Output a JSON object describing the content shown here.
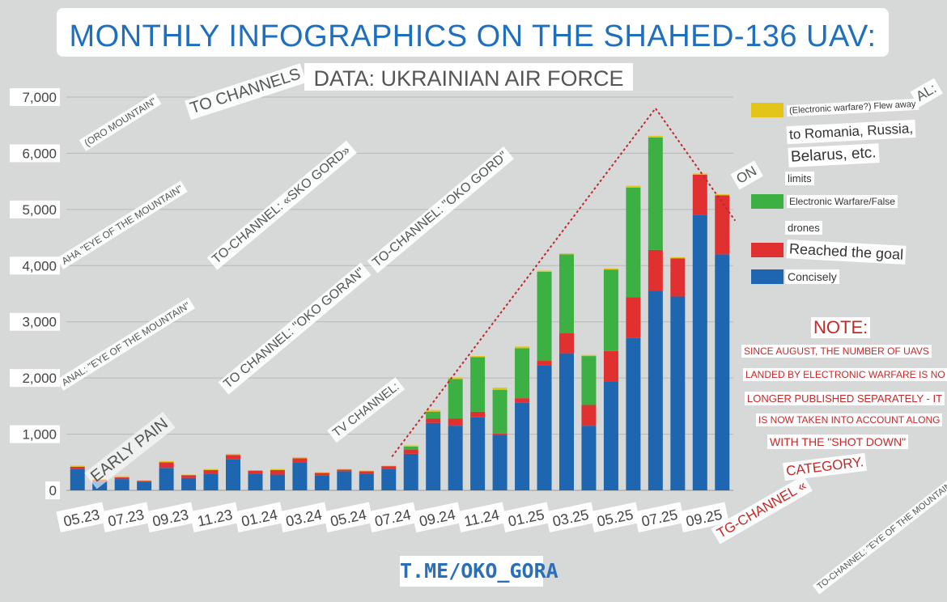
{
  "header": {
    "title": "MONTHLY INFOGRAPHICS ON THE SHAHED-136 UAV:",
    "subtitle": "DATA: UKRAINIAN AIR FORCE"
  },
  "chart_data": {
    "type": "bar",
    "stacked": true,
    "months": [
      "05.23",
      "06.23",
      "07.23",
      "08.23",
      "09.23",
      "10.23",
      "11.23",
      "12.23",
      "01.24",
      "02.24",
      "03.24",
      "04.24",
      "05.24",
      "06.24",
      "07.24",
      "08.24",
      "09.24",
      "10.24",
      "11.24",
      "12.24",
      "01.25",
      "02.25",
      "03.25",
      "04.25",
      "05.25",
      "06.25",
      "07.25",
      "08.25",
      "09.25",
      "10.25"
    ],
    "x_tick_labels": [
      "05.23",
      "07.23",
      "09.23",
      "11.23",
      "01.24",
      "03.24",
      "05.24",
      "07.24",
      "09.24",
      "11.24",
      "01.25",
      "03.25",
      "05.25",
      "07.25",
      "09.25"
    ],
    "series": [
      {
        "name": "Concisely",
        "color": "#1f66b0",
        "values": [
          380,
          150,
          200,
          150,
          400,
          220,
          300,
          550,
          300,
          280,
          500,
          270,
          340,
          300,
          380,
          650,
          1200,
          1150,
          1300,
          980,
          1560,
          2230,
          2440,
          1150,
          1930,
          2710,
          3550,
          3450,
          4900,
          4200
        ]
      },
      {
        "name": "Reached the goal",
        "color": "#e03030",
        "values": [
          40,
          40,
          30,
          20,
          100,
          50,
          60,
          80,
          50,
          80,
          70,
          40,
          30,
          40,
          50,
          70,
          80,
          130,
          100,
          30,
          80,
          80,
          360,
          370,
          550,
          730,
          730,
          680,
          720,
          1050
        ]
      },
      {
        "name": "Electronic Warfare/False limits drones",
        "color": "#3cb043",
        "values": [
          0,
          0,
          0,
          0,
          0,
          0,
          0,
          0,
          0,
          0,
          0,
          0,
          0,
          0,
          0,
          60,
          120,
          700,
          970,
          780,
          890,
          1580,
          1400,
          870,
          1450,
          1950,
          2000,
          0,
          0,
          0
        ]
      },
      {
        "name": "(Electronic warfare?) Flew away to Romania, Russia, Belarus, etc.",
        "color": "#e3c419",
        "values": [
          20,
          10,
          20,
          10,
          20,
          10,
          20,
          20,
          10,
          20,
          20,
          10,
          10,
          10,
          10,
          20,
          30,
          30,
          20,
          40,
          30,
          20,
          20,
          20,
          20,
          30,
          30,
          20,
          20,
          20
        ]
      }
    ],
    "ylim": [
      0,
      7000
    ],
    "y_ticks": [
      0,
      1000,
      2000,
      3000,
      4000,
      5000,
      6000,
      7000
    ],
    "y_tick_labels": [
      "0",
      "1,000",
      "2,000",
      "3,000",
      "4,000",
      "5,000",
      "6,000",
      "7,000"
    ],
    "trend_line": {
      "from_month": "07.24",
      "peak_month": "07.25",
      "peak_value": 6800,
      "to_month": "10.25",
      "to_value": 5600
    }
  },
  "legend": {
    "items": [
      {
        "color": "#e3c419",
        "lines": [
          "(Electronic warfare?) Flew away",
          "to Romania, Russia,",
          "Belarus, etc.",
          "limits"
        ]
      },
      {
        "color": "#3cb043",
        "lines": [
          "Electronic Warfare/False",
          "drones"
        ]
      },
      {
        "color": "#e03030",
        "lines": [
          "Reached the goal"
        ]
      },
      {
        "color": "#1f66b0",
        "lines": [
          "Concisely"
        ]
      }
    ]
  },
  "note": {
    "title": "NOTE:",
    "lines": [
      "SINCE AUGUST, THE NUMBER OF UAVS",
      "LANDED BY ELECTRONIC WARFARE IS NO",
      "LONGER PUBLISHED SEPARATELY - IT",
      "IS NOW TAKEN INTO ACCOUNT ALONG",
      "WITH THE \"SHOT DOWN\"",
      "CATEGORY."
    ]
  },
  "watermarks": {
    "to_channels": "TO CHANNELS",
    "oro_mountain": "(ORO MOUNTAIN\"",
    "sko_gord": "TO-CHANNEL: «SKO GORD»",
    "oko_gord": "TO-CHANNEL: \"OKO GORD\"",
    "eye_mountain_1": "AHA \"EYE OF THE MOUNTAIN\"",
    "eye_mountain_2": "ANAL: \"EYE OF THE MOUNTAIN\"",
    "oko_goran": "TO CHANNEL: \"OKO GORAN\"",
    "tv_channel": "TV CHANNEL:",
    "early_pain": "EARLY PAIN",
    "tg_channel": "TG-CHANNEL «",
    "eye_mountains": "TO-CHANNEL: \"EYE OF THE MOUNTAINS\"",
    "al": "AL:",
    "on": "ON"
  },
  "footer": {
    "link": "T.ME/OKO_GORA"
  }
}
